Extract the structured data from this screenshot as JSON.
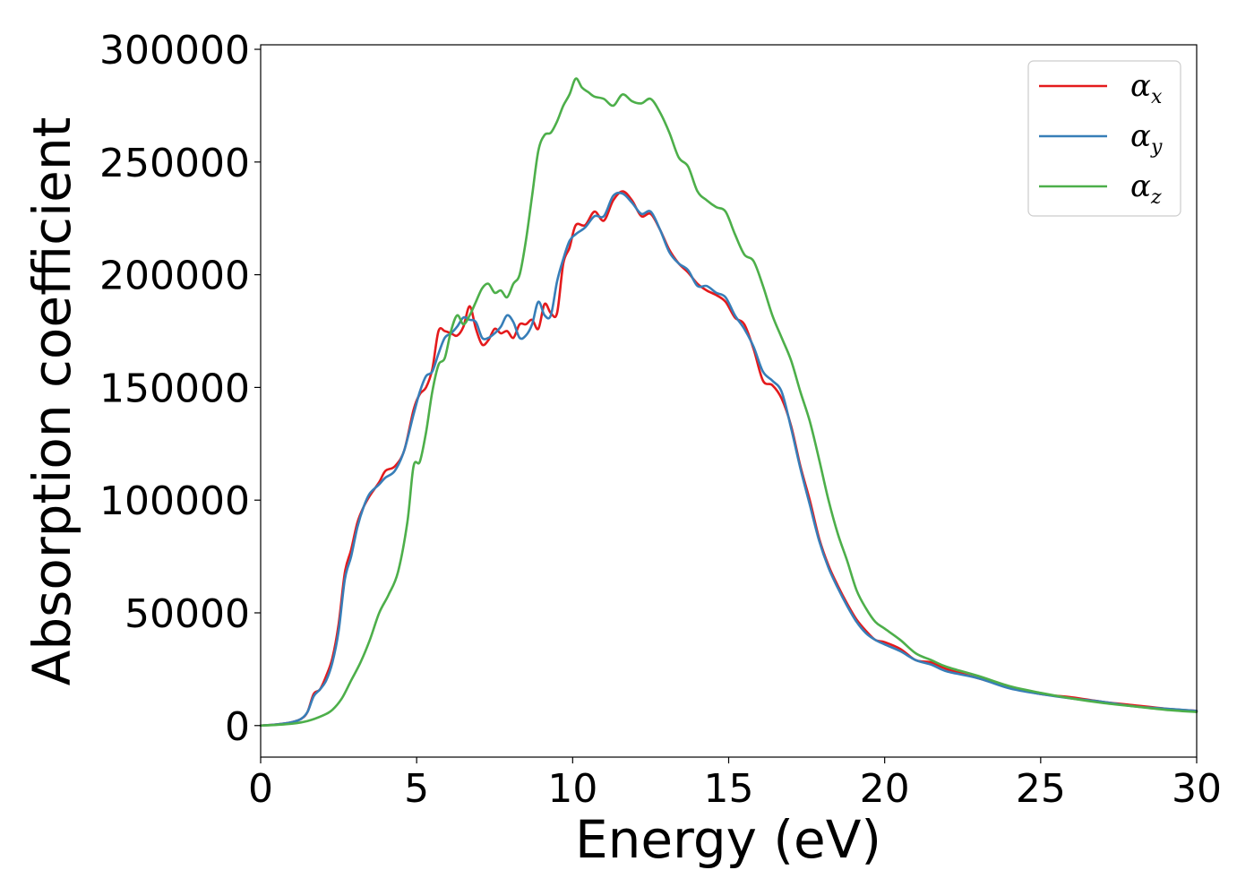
{
  "chart_data": {
    "type": "line",
    "title": "",
    "xlabel": "Energy (eV)",
    "ylabel": "Absorption coefficient",
    "xlim": [
      0,
      30
    ],
    "ylim": [
      -14000,
      302000
    ],
    "xticks": [
      0,
      5,
      10,
      15,
      20,
      25,
      30
    ],
    "yticks": [
      0,
      50000,
      100000,
      150000,
      200000,
      250000,
      300000
    ],
    "xtick_labels": [
      "0",
      "5",
      "10",
      "15",
      "20",
      "25",
      "30"
    ],
    "ytick_labels": [
      "0",
      "50000",
      "100000",
      "150000",
      "200000",
      "250000",
      "300000"
    ],
    "legend_position": "top-right",
    "series": [
      {
        "name": "α_x",
        "label_base": "α",
        "label_sub": "x",
        "color": "#e41a1c",
        "x": [
          0,
          0.5,
          1.0,
          1.3,
          1.5,
          1.7,
          1.9,
          2.1,
          2.3,
          2.5,
          2.7,
          2.9,
          3.1,
          3.3,
          3.5,
          3.8,
          4.0,
          4.3,
          4.6,
          4.9,
          5.1,
          5.3,
          5.5,
          5.7,
          5.9,
          6.1,
          6.3,
          6.5,
          6.7,
          6.9,
          7.1,
          7.3,
          7.5,
          7.7,
          7.9,
          8.1,
          8.3,
          8.5,
          8.7,
          8.9,
          9.1,
          9.3,
          9.5,
          9.7,
          9.9,
          10.1,
          10.4,
          10.7,
          11.0,
          11.3,
          11.6,
          11.9,
          12.2,
          12.5,
          12.8,
          13.1,
          13.4,
          13.7,
          14.0,
          14.3,
          14.6,
          14.9,
          15.2,
          15.5,
          15.8,
          16.1,
          16.4,
          16.7,
          17.0,
          17.3,
          17.6,
          17.9,
          18.2,
          18.5,
          18.8,
          19.1,
          19.4,
          19.7,
          20.0,
          20.5,
          21.0,
          21.5,
          22.0,
          23.0,
          24.0,
          25.0,
          26.0,
          27.0,
          28.0,
          29.0,
          30.0
        ],
        "values": [
          0,
          500,
          1500,
          3000,
          6000,
          14000,
          16000,
          22000,
          30000,
          45000,
          68000,
          78000,
          90000,
          97000,
          102000,
          108000,
          113000,
          115000,
          122000,
          140000,
          147000,
          150000,
          158000,
          175000,
          175000,
          174000,
          173000,
          177000,
          186000,
          176000,
          169000,
          171000,
          176000,
          174000,
          175000,
          172000,
          178000,
          178000,
          180000,
          176000,
          187000,
          183000,
          183000,
          205000,
          212000,
          222000,
          222000,
          228000,
          224000,
          233000,
          237000,
          233000,
          226000,
          227000,
          220000,
          211000,
          205000,
          201000,
          196000,
          193000,
          191000,
          188000,
          181000,
          178000,
          167000,
          153000,
          151000,
          145000,
          133000,
          115000,
          100000,
          83000,
          71000,
          62000,
          54000,
          47000,
          42000,
          38000,
          37000,
          34000,
          29000,
          28000,
          25000,
          21000,
          17000,
          14000,
          12500,
          10500,
          9000,
          7500,
          6500
        ]
      },
      {
        "name": "α_y",
        "label_base": "α",
        "label_sub": "y",
        "color": "#377eb8",
        "x": [
          0,
          0.5,
          1.0,
          1.3,
          1.5,
          1.7,
          1.9,
          2.1,
          2.3,
          2.5,
          2.7,
          2.9,
          3.1,
          3.3,
          3.5,
          3.8,
          4.0,
          4.3,
          4.6,
          4.9,
          5.1,
          5.3,
          5.5,
          5.7,
          5.9,
          6.1,
          6.3,
          6.5,
          6.7,
          6.9,
          7.1,
          7.3,
          7.5,
          7.7,
          7.9,
          8.1,
          8.3,
          8.5,
          8.7,
          8.9,
          9.1,
          9.3,
          9.5,
          9.7,
          9.9,
          10.1,
          10.4,
          10.7,
          11.0,
          11.3,
          11.6,
          11.9,
          12.2,
          12.5,
          12.8,
          13.1,
          13.4,
          13.7,
          14.0,
          14.3,
          14.6,
          14.9,
          15.2,
          15.5,
          15.8,
          16.1,
          16.4,
          16.7,
          17.0,
          17.3,
          17.6,
          17.9,
          18.2,
          18.5,
          18.8,
          19.1,
          19.4,
          19.7,
          20.0,
          20.5,
          21.0,
          21.5,
          22.0,
          23.0,
          24.0,
          25.0,
          26.0,
          27.0,
          28.0,
          29.0,
          30.0
        ],
        "values": [
          0,
          500,
          1500,
          3000,
          6000,
          13000,
          16000,
          20000,
          28000,
          42000,
          65000,
          75000,
          88000,
          97000,
          103000,
          107000,
          110000,
          113000,
          122000,
          138000,
          148000,
          155000,
          157000,
          165000,
          172000,
          174000,
          177000,
          181000,
          180000,
          179000,
          172000,
          172000,
          174000,
          177000,
          182000,
          179000,
          172000,
          173000,
          178000,
          188000,
          182000,
          182000,
          197000,
          207000,
          215000,
          218000,
          221000,
          226000,
          226000,
          235000,
          236000,
          232000,
          227000,
          228000,
          220000,
          210000,
          205000,
          202000,
          195000,
          195000,
          192000,
          190000,
          182000,
          176000,
          168000,
          157000,
          153000,
          148000,
          132000,
          114000,
          98000,
          82000,
          70000,
          61000,
          53000,
          46000,
          41000,
          38000,
          36000,
          33000,
          29000,
          27000,
          24000,
          21000,
          16500,
          14000,
          12000,
          10500,
          8500,
          7500,
          6500
        ]
      },
      {
        "name": "α_z",
        "label_base": "α",
        "label_sub": "z",
        "color": "#4daf4a",
        "x": [
          0,
          0.5,
          1.0,
          1.5,
          2.0,
          2.3,
          2.6,
          2.9,
          3.2,
          3.5,
          3.8,
          4.1,
          4.4,
          4.7,
          4.9,
          5.1,
          5.3,
          5.5,
          5.7,
          5.9,
          6.1,
          6.3,
          6.5,
          6.7,
          6.9,
          7.1,
          7.3,
          7.5,
          7.7,
          7.9,
          8.1,
          8.3,
          8.5,
          8.7,
          8.9,
          9.1,
          9.3,
          9.5,
          9.7,
          9.9,
          10.1,
          10.3,
          10.5,
          10.7,
          11.0,
          11.3,
          11.6,
          11.9,
          12.2,
          12.5,
          12.8,
          13.1,
          13.4,
          13.7,
          14.0,
          14.3,
          14.6,
          14.9,
          15.2,
          15.5,
          15.8,
          16.1,
          16.4,
          16.7,
          17.0,
          17.3,
          17.6,
          17.9,
          18.2,
          18.5,
          18.8,
          19.1,
          19.4,
          19.7,
          20.0,
          20.5,
          21.0,
          21.5,
          22.0,
          23.0,
          24.0,
          25.0,
          26.0,
          27.0,
          28.0,
          29.0,
          30.0
        ],
        "values": [
          0,
          300,
          800,
          2000,
          4500,
          7000,
          12000,
          20000,
          28000,
          38000,
          50000,
          58000,
          68000,
          90000,
          115000,
          117000,
          130000,
          148000,
          160000,
          163000,
          175000,
          182000,
          178000,
          182000,
          188000,
          194000,
          196000,
          192000,
          193000,
          190000,
          196000,
          200000,
          215000,
          235000,
          255000,
          262000,
          263000,
          268000,
          275000,
          280000,
          287000,
          283000,
          281000,
          279000,
          278000,
          275000,
          280000,
          277000,
          276000,
          278000,
          272000,
          263000,
          252000,
          248000,
          237000,
          233000,
          230000,
          228000,
          218000,
          209000,
          206000,
          195000,
          182000,
          172000,
          162000,
          148000,
          135000,
          118000,
          100000,
          85000,
          73000,
          60000,
          52000,
          46000,
          43000,
          38000,
          32000,
          29000,
          26000,
          22000,
          17500,
          14500,
          12000,
          10000,
          8500,
          7000,
          6000
        ]
      }
    ]
  }
}
